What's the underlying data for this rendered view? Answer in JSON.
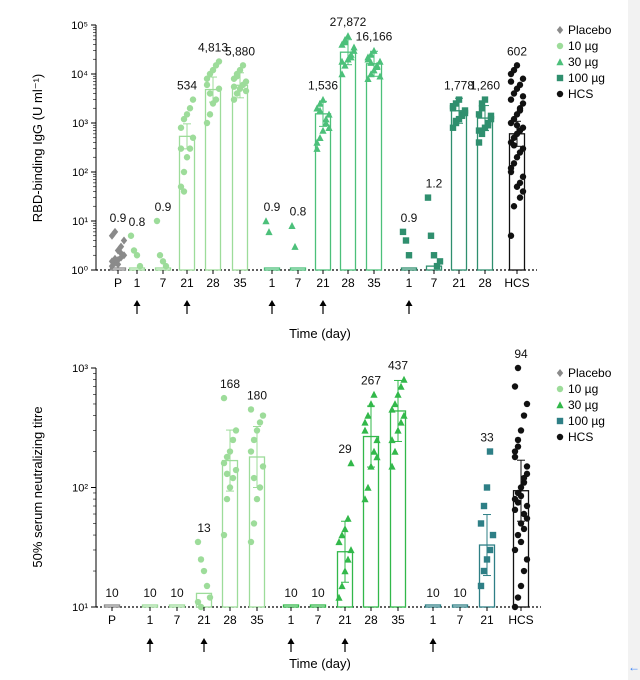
{
  "chart_data": [
    {
      "type": "bar",
      "scale": "log",
      "ylabel": "RBD-binding IgG (U ml⁻¹)",
      "xlabel": "Time (day)",
      "ylim": [
        1,
        100000
      ],
      "ytick_labels": [
        "10⁰",
        "10¹",
        "10²",
        "10³",
        "10⁴",
        "10⁵"
      ],
      "ytick_values": [
        1,
        10,
        100,
        1000,
        10000,
        100000
      ],
      "legend": [
        "Placebo",
        "10 µg",
        "30 µg",
        "100 µg",
        "HCS"
      ],
      "groups": [
        {
          "name": "Placebo",
          "color": "#8a8a8a",
          "marker": "diamond",
          "bars": [
            {
              "label": "P",
              "value": 0.9,
              "value_label": "0.9",
              "arrow": false,
              "points": [
                1.2,
                1.4,
                1.6,
                1.8,
                2.0,
                1.5,
                1.7,
                2.5,
                3.0,
                4.0,
                5.0,
                6.0,
                1.3,
                2.2
              ]
            }
          ]
        },
        {
          "name": "10 µg",
          "color": "#9ddc9a",
          "marker": "circle",
          "bars": [
            {
              "label": "1",
              "value": 0.8,
              "value_label": "0.8",
              "arrow": true,
              "points": [
                5,
                2.5,
                2.0,
                1.2
              ]
            },
            {
              "label": "7",
              "value": 0.9,
              "value_label": "0.9",
              "arrow": false,
              "points": [
                10,
                2,
                1.5,
                1.2
              ]
            },
            {
              "label": "21",
              "value": 534,
              "value_label": "534",
              "arrow": true,
              "points": [
                50,
                100,
                200,
                300,
                500,
                800,
                1200,
                1500,
                2000,
                3000,
                300,
                40
              ]
            },
            {
              "label": "28",
              "value": 4813,
              "value_label": "4,813",
              "arrow": false,
              "points": [
                1000,
                1500,
                2500,
                3000,
                5000,
                8000,
                10000,
                12000,
                15000,
                18000,
                6000,
                4000
              ]
            },
            {
              "label": "35",
              "value": 5880,
              "value_label": "5,880",
              "arrow": false,
              "points": [
                3000,
                4000,
                5000,
                6000,
                7000,
                8000,
                10000,
                12000,
                15000,
                4500,
                5500,
                9000
              ]
            }
          ]
        },
        {
          "name": "30 µg",
          "color": "#4cc07a",
          "marker": "triangle",
          "bars": [
            {
              "label": "1",
              "value": 0.9,
              "value_label": "0.9",
              "arrow": true,
              "points": [
                10,
                6
              ]
            },
            {
              "label": "7",
              "value": 0.8,
              "value_label": "0.8",
              "arrow": false,
              "points": [
                8,
                3
              ]
            },
            {
              "label": "21",
              "value": 1536,
              "value_label": "1,536",
              "arrow": true,
              "points": [
                300,
                500,
                700,
                1000,
                1500,
                2000,
                2500,
                3000,
                1200,
                800,
                400,
                1800
              ]
            },
            {
              "label": "28",
              "value": 27872,
              "value_label": "27,872",
              "arrow": false,
              "points": [
                10000,
                15000,
                20000,
                25000,
                30000,
                40000,
                50000,
                60000,
                22000,
                35000,
                18000,
                45000
              ]
            },
            {
              "label": "35",
              "value": 16166,
              "value_label": "16,166",
              "arrow": false,
              "points": [
                8000,
                10000,
                12000,
                15000,
                18000,
                20000,
                25000,
                30000,
                14000,
                9000,
                22000,
                17000
              ]
            }
          ]
        },
        {
          "name": "100 µg",
          "color": "#2f8f6e",
          "marker": "square",
          "bars": [
            {
              "label": "1",
              "value": 0.9,
              "value_label": "0.9",
              "arrow": true,
              "points": [
                6,
                4,
                2
              ]
            },
            {
              "label": "7",
              "value": 1.2,
              "value_label": "1.2",
              "arrow": false,
              "points": [
                30,
                5,
                2,
                1.2,
                1.5
              ]
            },
            {
              "label": "21",
              "value": 1778,
              "value_label": "1,778",
              "arrow": false,
              "points": [
                800,
                1000,
                1200,
                1500,
                1800,
                2000,
                2500,
                3000,
                1400,
                1600,
                2200,
                1100
              ]
            },
            {
              "label": "28",
              "value": 1260,
              "value_label": "1,260",
              "arrow": false,
              "points": [
                400,
                600,
                800,
                1000,
                1200,
                1500,
                2000,
                3000,
                900,
                1400,
                700,
                2500
              ]
            }
          ]
        },
        {
          "name": "HCS",
          "color": "#111111",
          "marker": "circle",
          "bars": [
            {
              "label": "HCS",
              "value": 602,
              "value_label": "602",
              "arrow": false,
              "points": [
                5,
                20,
                50,
                60,
                80,
                100,
                150,
                200,
                250,
                300,
                400,
                500,
                600,
                700,
                800,
                1000,
                1200,
                1500,
                2000,
                2500,
                3000,
                4000,
                5000,
                6000,
                8000,
                10000,
                12000,
                15000,
                30,
                40,
                120,
                350,
                900,
                1800,
                3500,
                7000
              ]
            }
          ]
        }
      ]
    },
    {
      "type": "bar",
      "scale": "log",
      "ylabel": "50% serum neutralizing titre",
      "xlabel": "Time (day)",
      "ylim": [
        10,
        1000
      ],
      "ytick_labels": [
        "10¹",
        "10²",
        "10³"
      ],
      "ytick_values": [
        10,
        100,
        1000
      ],
      "legend": [
        "Placebo",
        "10 µg",
        "30 µg",
        "100 µg",
        "HCS"
      ],
      "groups": [
        {
          "name": "Placebo",
          "color": "#8a8a8a",
          "marker": "diamond",
          "bars": [
            {
              "label": "P",
              "value": 10,
              "value_label": "10",
              "arrow": false,
              "points": []
            }
          ]
        },
        {
          "name": "10 µg",
          "color": "#9ddc9a",
          "marker": "circle",
          "bars": [
            {
              "label": "1",
              "value": 10,
              "value_label": "10",
              "arrow": true,
              "points": []
            },
            {
              "label": "7",
              "value": 10,
              "value_label": "10",
              "arrow": false,
              "points": []
            },
            {
              "label": "21",
              "value": 13,
              "value_label": "13",
              "arrow": true,
              "points": [
                35,
                25,
                20,
                15,
                12,
                11,
                10
              ]
            },
            {
              "label": "28",
              "value": 168,
              "value_label": "168",
              "arrow": false,
              "points": [
                40,
                80,
                100,
                120,
                140,
                160,
                180,
                200,
                250,
                300,
                560,
                130
              ]
            },
            {
              "label": "35",
              "value": 180,
              "value_label": "180",
              "arrow": false,
              "points": [
                35,
                50,
                80,
                100,
                150,
                200,
                250,
                300,
                350,
                400,
                450,
                120
              ]
            }
          ]
        },
        {
          "name": "30 µg",
          "color": "#32b84a",
          "marker": "triangle",
          "bars": [
            {
              "label": "1",
              "value": 10,
              "value_label": "10",
              "arrow": true,
              "points": []
            },
            {
              "label": "7",
              "value": 10,
              "value_label": "10",
              "arrow": false,
              "points": []
            },
            {
              "label": "21",
              "value": 29,
              "value_label": "29",
              "arrow": true,
              "points": [
                12,
                15,
                20,
                25,
                30,
                35,
                40,
                45,
                55,
                160
              ]
            },
            {
              "label": "28",
              "value": 267,
              "value_label": "267",
              "arrow": false,
              "points": [
                80,
                100,
                150,
                200,
                250,
                300,
                400,
                500,
                600,
                180,
                350
              ]
            },
            {
              "label": "35",
              "value": 437,
              "value_label": "437",
              "arrow": false,
              "points": [
                150,
                200,
                300,
                350,
                400,
                450,
                500,
                600,
                700,
                800,
                250
              ]
            }
          ]
        },
        {
          "name": "100 µg",
          "color": "#2e7f86",
          "marker": "square",
          "bars": [
            {
              "label": "1",
              "value": 10,
              "value_label": "10",
              "arrow": true,
              "points": []
            },
            {
              "label": "7",
              "value": 10,
              "value_label": "10",
              "arrow": false,
              "points": []
            },
            {
              "label": "21",
              "value": 33,
              "value_label": "33",
              "arrow": false,
              "points": [
                15,
                20,
                25,
                30,
                40,
                50,
                70,
                100,
                200
              ]
            }
          ]
        },
        {
          "name": "HCS",
          "color": "#111111",
          "marker": "circle",
          "bars": [
            {
              "label": "HCS",
              "value": 94,
              "value_label": "94",
              "arrow": false,
              "points": [
                10,
                12,
                15,
                20,
                25,
                30,
                40,
                50,
                60,
                70,
                80,
                90,
                100,
                120,
                150,
                200,
                250,
                300,
                400,
                500,
                700,
                1000,
                35,
                45,
                55,
                65,
                75,
                85,
                110,
                130,
                180,
                220
              ]
            }
          ]
        }
      ]
    }
  ]
}
